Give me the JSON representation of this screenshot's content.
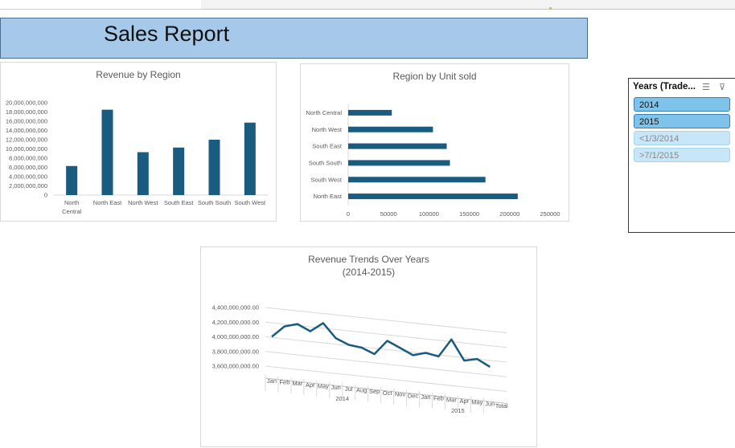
{
  "banner": {
    "title": "Sales Report"
  },
  "colors": {
    "bar": "#1a5c80",
    "line": "#1a5c80",
    "banner": "#a6c9ea",
    "slicer_selected": "#7fc3ea",
    "slicer_unselected": "#c7e6f7"
  },
  "slicer": {
    "title": "Years (Trade...",
    "icons": [
      "multi-select-icon",
      "clear-filter-icon"
    ],
    "items": [
      {
        "label": "2014",
        "selected": true
      },
      {
        "label": "2015",
        "selected": true
      },
      {
        "label": "<1/3/2014",
        "selected": false
      },
      {
        "label": ">7/1/2015",
        "selected": false
      }
    ]
  },
  "chart_data": [
    {
      "type": "bar",
      "title": "Revenue by Region",
      "categories": [
        "North Central",
        "North East",
        "North West",
        "South East",
        "South South",
        "South West"
      ],
      "values": [
        6300000000,
        18500000000,
        9300000000,
        10300000000,
        12000000000,
        15700000000
      ],
      "yticks": [
        "0",
        "2,000,000,000",
        "4,000,000,000",
        "6,000,000,000",
        "8,000,000,000",
        "10,000,000,000",
        "12,000,000,000",
        "14,000,000,000",
        "16,000,000,000",
        "18,000,000,000",
        "20,000,000,000"
      ],
      "ylim": [
        0,
        20000000000
      ],
      "grid": false
    },
    {
      "type": "bar",
      "orientation": "horizontal",
      "title": "Region by Unit sold",
      "categories": [
        "North Central",
        "North West",
        "South East",
        "South South",
        "South West",
        "North East"
      ],
      "values": [
        54000,
        105000,
        122000,
        126000,
        170000,
        210000
      ],
      "xticks": [
        "0",
        "50000",
        "100000",
        "150000",
        "200000",
        "250000"
      ],
      "xlim": [
        0,
        250000
      ],
      "grid": false
    },
    {
      "type": "line",
      "title": "Revenue Trends Over Years",
      "subtitle": "(2014-2015)",
      "x": [
        "Jan",
        "Feb",
        "Mar",
        "Apr",
        "May",
        "Jun",
        "Jul",
        "Aug",
        "Sep",
        "Oct",
        "Nov",
        "Dec",
        "Jan",
        "Feb",
        "Mar",
        "Apr",
        "May",
        "Jun"
      ],
      "groups": [
        {
          "label": "2014",
          "count": 12
        },
        {
          "label": "2015",
          "count": 6
        }
      ],
      "extra_label": "Total",
      "values": [
        4010000000,
        4170000000,
        4220000000,
        4140000000,
        4270000000,
        4080000000,
        4010000000,
        3990000000,
        3920000000,
        4120000000,
        4040000000,
        3960000000,
        4010000000,
        3980000000,
        4230000000,
        3960000000,
        4000000000,
        3910000000
      ],
      "yticks": [
        "3,600,000,000.00",
        "3,800,000,000.00",
        "4,000,000,000.00",
        "4,200,000,000.00",
        "4,400,000,000.00"
      ],
      "ylim": [
        3600000000,
        4400000000
      ]
    }
  ]
}
